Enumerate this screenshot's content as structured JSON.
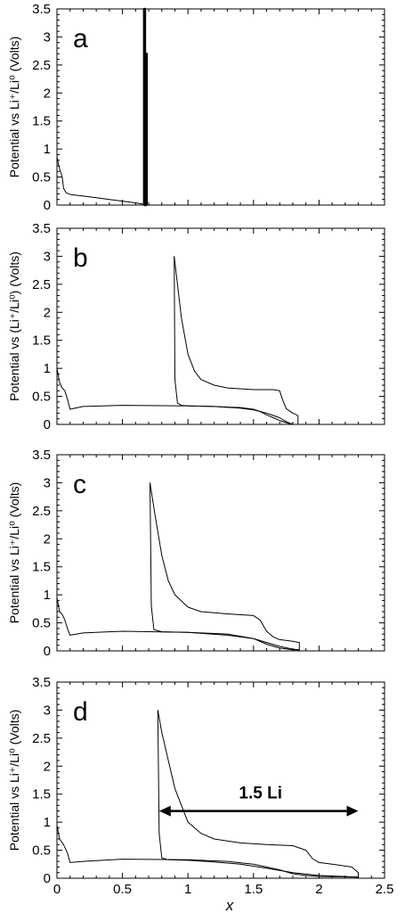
{
  "chart_data": [
    {
      "type": "line",
      "panel": "a",
      "ylabel": "Potential vs  Li⁺/Li⁰ (Volts)",
      "xlim": [
        0,
        2.5
      ],
      "ylim": [
        0,
        3.5
      ],
      "xticks": [
        "0",
        "0.5",
        "1",
        "1.5",
        "2",
        "2.5"
      ],
      "yticks": [
        "0",
        "0.5",
        "1",
        "1.5",
        "2",
        "2.5",
        "3",
        "3.5"
      ],
      "series": [
        {
          "x": [
            0,
            0.02,
            0.04,
            0.05,
            0.07,
            0.1,
            0.2,
            0.3,
            0.4,
            0.5,
            0.6,
            0.65,
            0.675
          ],
          "y": [
            0.85,
            0.65,
            0.5,
            0.3,
            0.22,
            0.19,
            0.16,
            0.13,
            0.1,
            0.07,
            0.04,
            0.02,
            0.0
          ]
        },
        {
          "x": [
            0.665,
            0.665,
            0.672,
            0.672,
            0.68,
            0.68,
            0.685,
            0.685
          ],
          "y": [
            0.0,
            3.5,
            3.5,
            0.0,
            0.0,
            2.7,
            2.7,
            0.0
          ],
          "bold": true
        }
      ]
    },
    {
      "type": "line",
      "panel": "b",
      "ylabel": "Potential vs  (Li⁺/Li⁰)  (Volts)",
      "xlim": [
        0,
        2.5
      ],
      "ylim": [
        0,
        3.5
      ],
      "xticks": [
        "0",
        "0.5",
        "1",
        "1.5",
        "2",
        "2.5"
      ],
      "yticks": [
        "0",
        "0.5",
        "1",
        "1.5",
        "2",
        "2.5",
        "3",
        "3.5"
      ],
      "series": [
        {
          "x": [
            0,
            0.02,
            0.04,
            0.06,
            0.08,
            0.1,
            0.2,
            0.5,
            1.0,
            1.2,
            1.4,
            1.5,
            1.55,
            1.6,
            1.65,
            1.7,
            1.75,
            1.8
          ],
          "y": [
            1.0,
            0.75,
            0.65,
            0.6,
            0.45,
            0.27,
            0.32,
            0.34,
            0.33,
            0.32,
            0.3,
            0.27,
            0.23,
            0.17,
            0.12,
            0.07,
            0.03,
            0.0
          ]
        },
        {
          "x": [
            1.8,
            1.75,
            1.7,
            1.6,
            1.5,
            1.4,
            1.2,
            1.0,
            0.95,
            0.92,
            0.9,
            0.895
          ],
          "y": [
            0.0,
            0.05,
            0.12,
            0.2,
            0.26,
            0.29,
            0.32,
            0.33,
            0.34,
            0.38,
            0.8,
            3.0
          ]
        },
        {
          "x": [
            0.895,
            0.92,
            0.95,
            1.0,
            1.05,
            1.1,
            1.2,
            1.3,
            1.5,
            1.65,
            1.7,
            1.72,
            1.75,
            1.8,
            1.83,
            1.84,
            1.84
          ],
          "y": [
            3.0,
            2.5,
            1.9,
            1.25,
            0.95,
            0.8,
            0.7,
            0.65,
            0.62,
            0.62,
            0.6,
            0.45,
            0.28,
            0.2,
            0.17,
            0.15,
            0.0
          ]
        }
      ]
    },
    {
      "type": "line",
      "panel": "c",
      "ylabel": "Potential vs  Li⁺/Li⁰ (Volts)",
      "xlim": [
        0,
        2.5
      ],
      "ylim": [
        0,
        3.5
      ],
      "xticks": [
        "0",
        "0.5",
        "1",
        "1.5",
        "2",
        "2.5"
      ],
      "yticks": [
        "0",
        "0.5",
        "1",
        "1.5",
        "2",
        "2.5",
        "3",
        "3.5"
      ],
      "series": [
        {
          "x": [
            0,
            0.02,
            0.04,
            0.06,
            0.08,
            0.1,
            0.2,
            0.5,
            1.0,
            1.3,
            1.5,
            1.6,
            1.7,
            1.8,
            1.85
          ],
          "y": [
            0.95,
            0.7,
            0.65,
            0.55,
            0.4,
            0.28,
            0.32,
            0.35,
            0.33,
            0.3,
            0.22,
            0.12,
            0.05,
            0.02,
            0.02
          ]
        },
        {
          "x": [
            1.85,
            1.8,
            1.7,
            1.6,
            1.5,
            1.3,
            1.0,
            0.8,
            0.74,
            0.72,
            0.71
          ],
          "y": [
            0.02,
            0.03,
            0.08,
            0.15,
            0.22,
            0.28,
            0.33,
            0.34,
            0.38,
            0.8,
            3.0
          ]
        },
        {
          "x": [
            0.71,
            0.75,
            0.8,
            0.85,
            0.9,
            1.0,
            1.1,
            1.3,
            1.5,
            1.55,
            1.6,
            1.65,
            1.7,
            1.8,
            1.85,
            1.85
          ],
          "y": [
            3.0,
            2.4,
            1.7,
            1.25,
            1.0,
            0.78,
            0.7,
            0.66,
            0.63,
            0.55,
            0.35,
            0.25,
            0.2,
            0.17,
            0.15,
            0.0
          ]
        }
      ]
    },
    {
      "type": "line",
      "panel": "d",
      "ylabel": "Potential vs  Li⁺/Li⁰ (Volts)",
      "xlabel": "x",
      "xlim": [
        0,
        2.5
      ],
      "ylim": [
        0,
        3.5
      ],
      "xticks": [
        "0",
        "0.5",
        "1",
        "1.5",
        "2",
        "2.5"
      ],
      "yticks": [
        "0",
        "0.5",
        "1",
        "1.5",
        "2",
        "2.5",
        "3",
        "3.5"
      ],
      "annotation": {
        "text": "1.5 Li",
        "x_from": 0.78,
        "x_to": 2.3,
        "y": 1.2
      },
      "series": [
        {
          "x": [
            0,
            0.02,
            0.05,
            0.08,
            0.1,
            0.2,
            0.5,
            1.0,
            1.3,
            1.5,
            1.7,
            1.8,
            1.9,
            2.0,
            2.3
          ],
          "y": [
            0.95,
            0.7,
            0.6,
            0.45,
            0.28,
            0.3,
            0.34,
            0.33,
            0.3,
            0.25,
            0.15,
            0.08,
            0.05,
            0.03,
            0.02
          ]
        },
        {
          "x": [
            2.3,
            2.2,
            2.0,
            1.8,
            1.6,
            1.4,
            1.2,
            1.0,
            0.85,
            0.8,
            0.78,
            0.77
          ],
          "y": [
            0.02,
            0.03,
            0.05,
            0.1,
            0.18,
            0.25,
            0.29,
            0.32,
            0.33,
            0.36,
            0.8,
            3.0
          ]
        },
        {
          "x": [
            0.77,
            0.8,
            0.85,
            0.9,
            0.95,
            1.0,
            1.1,
            1.2,
            1.4,
            1.6,
            1.8,
            1.9,
            1.95,
            2.0,
            2.1,
            2.25,
            2.3,
            2.3
          ],
          "y": [
            3.0,
            2.6,
            2.1,
            1.6,
            1.3,
            1.0,
            0.8,
            0.7,
            0.63,
            0.6,
            0.58,
            0.5,
            0.35,
            0.28,
            0.25,
            0.2,
            0.1,
            0.0
          ]
        }
      ]
    }
  ]
}
